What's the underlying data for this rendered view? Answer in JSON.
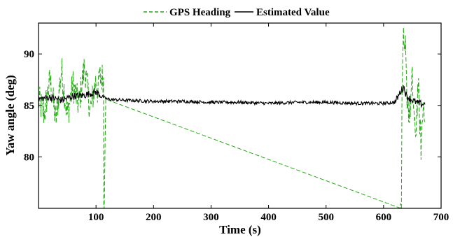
{
  "chart_data": {
    "type": "line",
    "title": "",
    "xlabel": "Time (s)",
    "ylabel": "Yaw angle (deg)",
    "xlim": [
      0,
      700
    ],
    "ylim": [
      75,
      93
    ],
    "xticks": [
      100,
      200,
      300,
      400,
      500,
      600,
      700
    ],
    "yticks": [
      80,
      85,
      90
    ],
    "xtick_labels": [
      "100",
      "200",
      "300",
      "400",
      "500",
      "600",
      "700"
    ],
    "ytick_labels": [
      "80",
      "85",
      "90"
    ],
    "grid": false,
    "legend_position": "top-center",
    "series": [
      {
        "name": "GPS Heading",
        "color": "#22aa11",
        "style": "dashed",
        "x": [
          0,
          10,
          20,
          30,
          40,
          50,
          60,
          70,
          80,
          90,
          100,
          104,
          105,
          113,
          113.5,
          114,
          117,
          630,
          631,
          632,
          634,
          636,
          638,
          640,
          645,
          650,
          655,
          660,
          665,
          670,
          672
        ],
        "y": [
          85.5,
          84.2,
          87.5,
          83.5,
          88.5,
          84.0,
          87.0,
          85.0,
          88.8,
          84.5,
          87.5,
          86.0,
          87.7,
          87.7,
          75.0,
          75.0,
          85.6,
          75.0,
          75.0,
          85.5,
          92.0,
          89.0,
          90.5,
          86.5,
          84.0,
          87.5,
          81.5,
          87.0,
          81.0,
          86.0,
          83.5
        ]
      },
      {
        "name": "Estimated Value",
        "color": "#000000",
        "style": "solid",
        "x": [
          0,
          20,
          40,
          60,
          80,
          100,
          110,
          120,
          150,
          200,
          250,
          300,
          350,
          400,
          450,
          500,
          550,
          600,
          620,
          630,
          635,
          640,
          650,
          660,
          670,
          672
        ],
        "y": [
          85.6,
          85.8,
          85.5,
          85.9,
          86.0,
          86.3,
          85.9,
          85.6,
          85.5,
          85.4,
          85.4,
          85.3,
          85.3,
          85.2,
          85.3,
          85.3,
          85.2,
          85.2,
          85.3,
          86.4,
          86.8,
          85.9,
          85.5,
          85.2,
          85.1,
          85.1
        ]
      }
    ]
  }
}
